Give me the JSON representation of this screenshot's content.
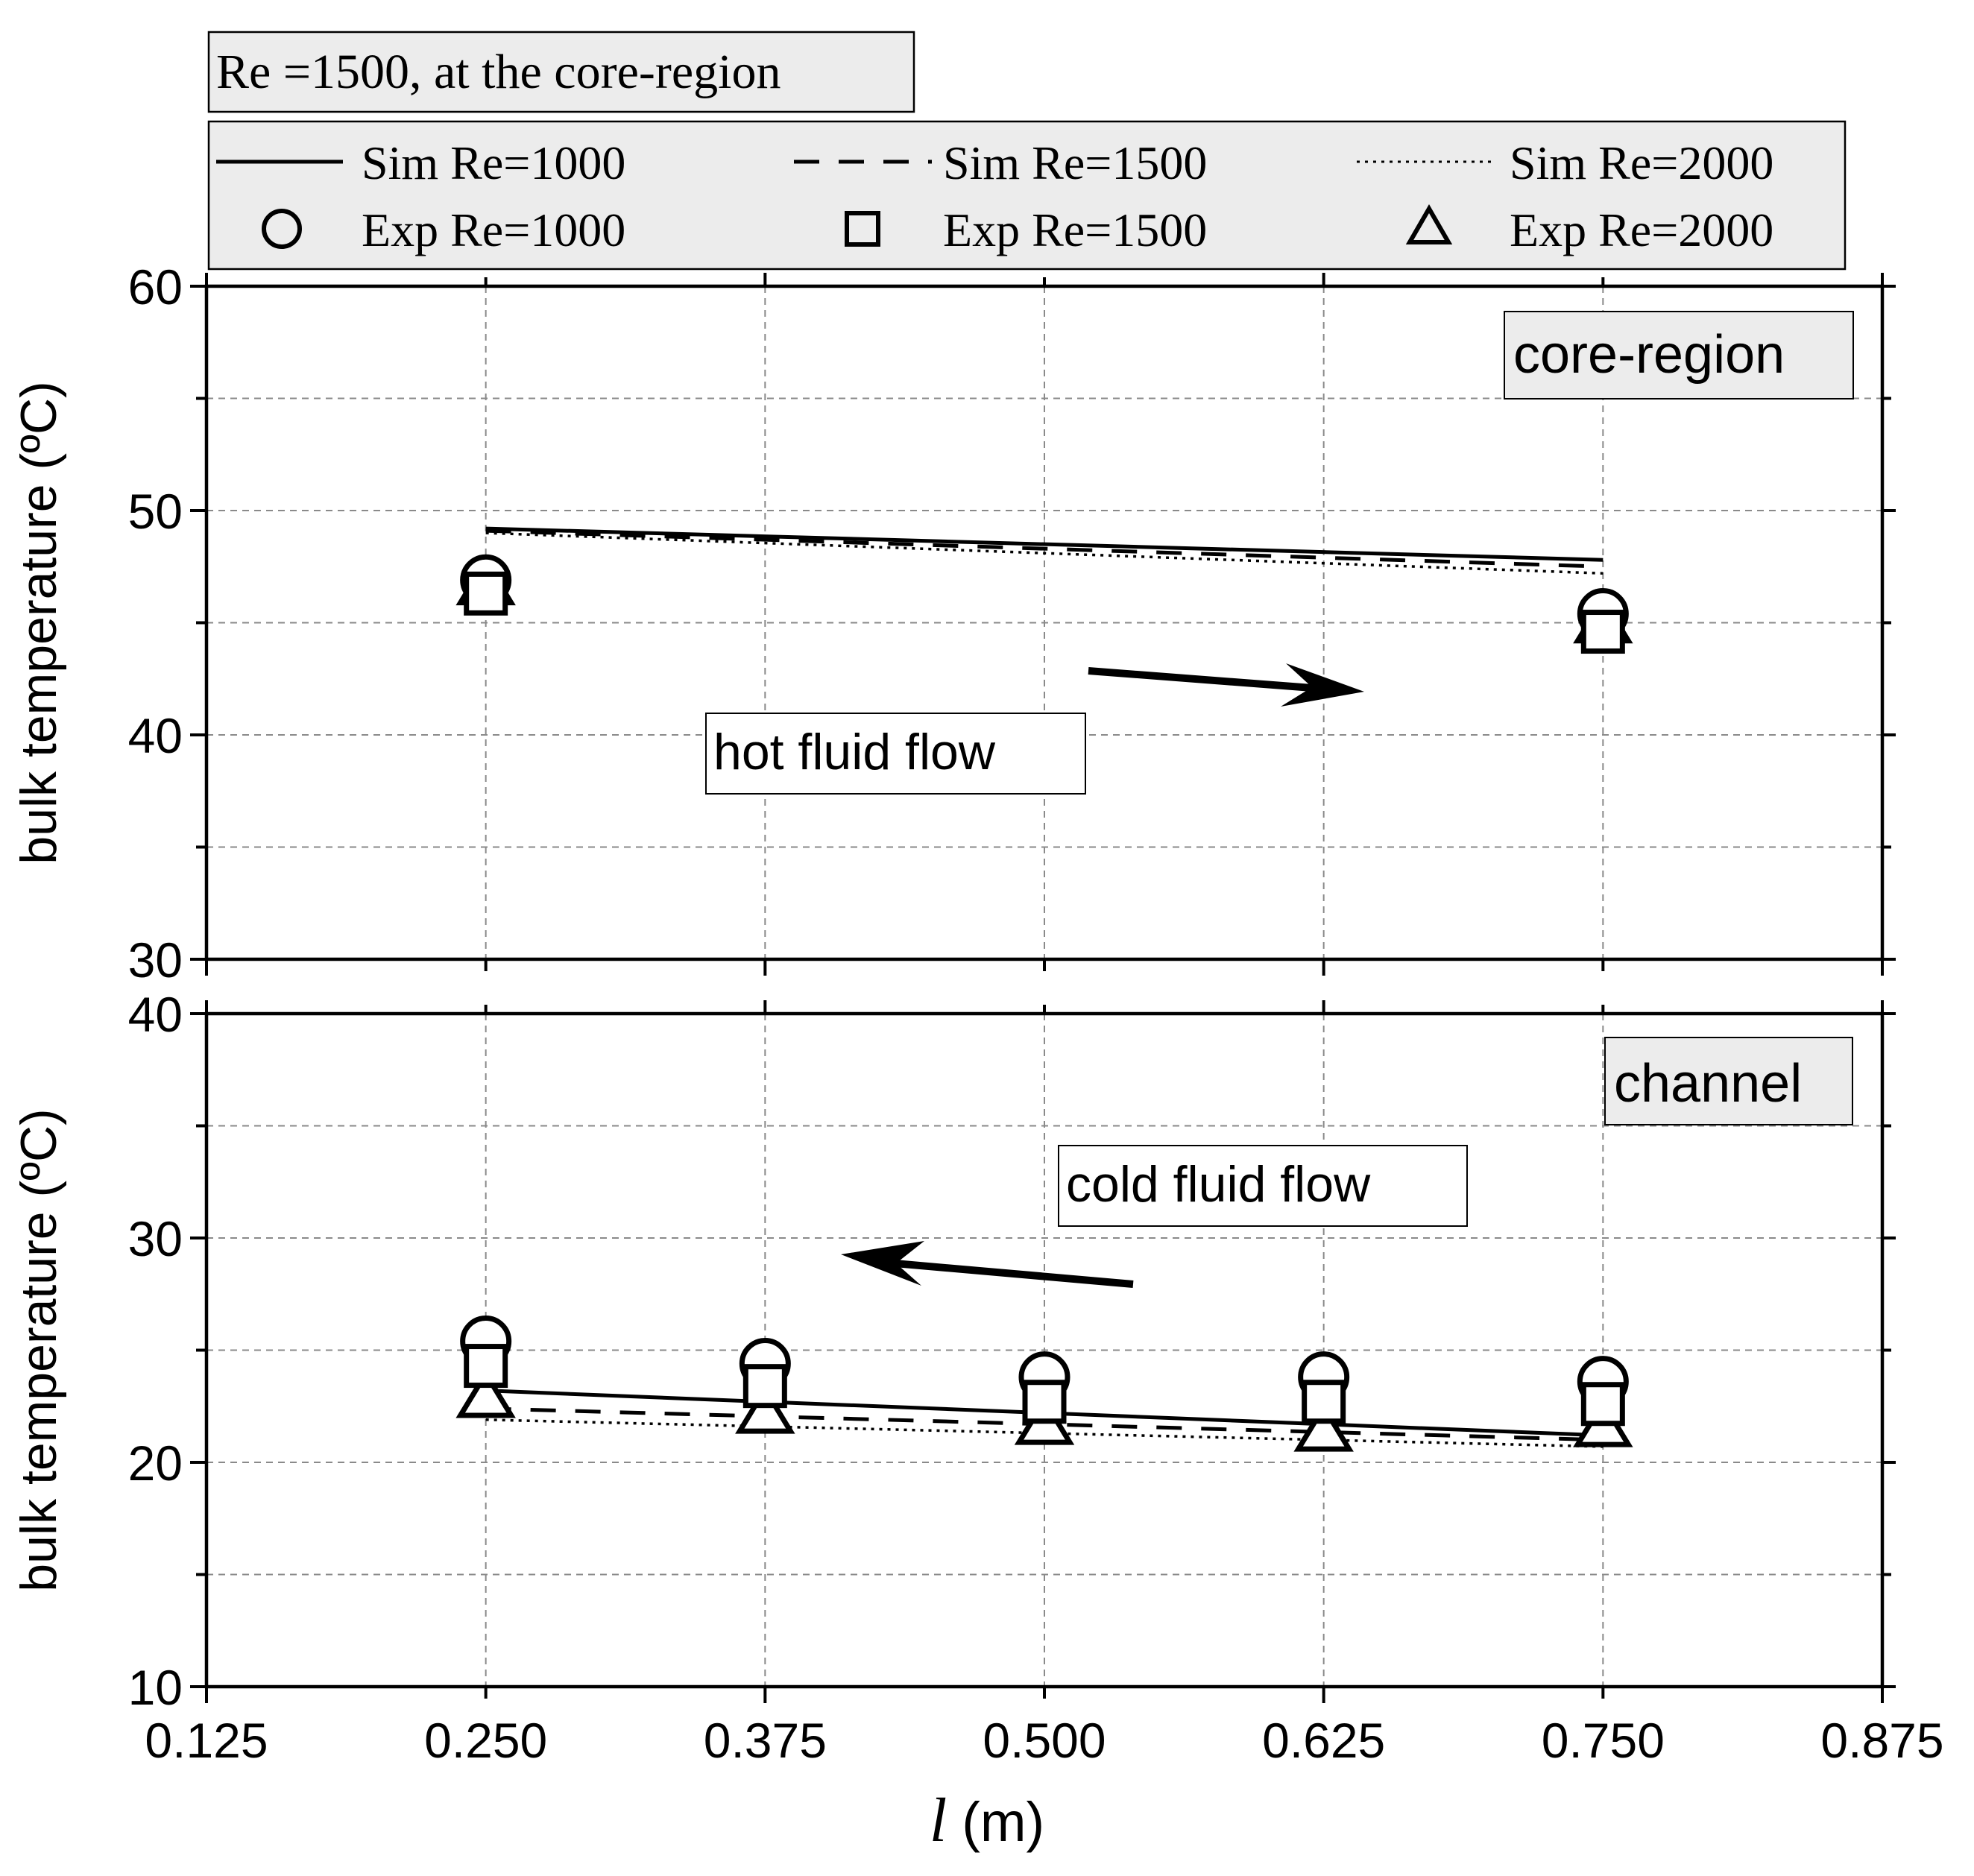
{
  "chart_title_box": "Re =1500, at the core-region",
  "legend": {
    "entries": [
      {
        "label": "Sim Re=1000",
        "kind": "line",
        "style": "solid"
      },
      {
        "label": "Sim Re=1500",
        "kind": "line",
        "style": "dashed"
      },
      {
        "label": "Sim Re=2000",
        "kind": "line",
        "style": "dotted"
      },
      {
        "label": "Exp Re=1000",
        "kind": "marker",
        "marker": "circle"
      },
      {
        "label": "Exp Re=1500",
        "kind": "marker",
        "marker": "square"
      },
      {
        "label": "Exp Re=2000",
        "kind": "marker",
        "marker": "triangle"
      }
    ]
  },
  "x_axis": {
    "label_italic": "l",
    "label_unit": "(m)",
    "ticks": [
      "0.125",
      "0.250",
      "0.375",
      "0.500",
      "0.625",
      "0.750",
      "0.875"
    ]
  },
  "chart_data": [
    {
      "type": "line",
      "panel": "core-region",
      "panel_label": "core-region",
      "ylabel": "bulk temperature (ºC)",
      "xlim": [
        0.125,
        0.875
      ],
      "ylim": [
        30,
        60
      ],
      "yticks": [
        "30",
        "40",
        "50",
        "60"
      ],
      "grid": true,
      "annotation": {
        "text": "hot fluid flow",
        "arrow": "right"
      },
      "sim_series": [
        {
          "name": "Sim Re=1000",
          "style": "solid",
          "x": [
            0.25,
            0.75
          ],
          "y": [
            49.2,
            47.8
          ]
        },
        {
          "name": "Sim Re=1500",
          "style": "dashed",
          "x": [
            0.25,
            0.75
          ],
          "y": [
            49.1,
            47.5
          ]
        },
        {
          "name": "Sim Re=2000",
          "style": "dotted",
          "x": [
            0.25,
            0.75
          ],
          "y": [
            49.0,
            47.2
          ]
        }
      ],
      "exp_series": [
        {
          "name": "Exp Re=1000",
          "marker": "circle",
          "x": [
            0.25,
            0.75
          ],
          "y": [
            46.9,
            45.4
          ]
        },
        {
          "name": "Exp Re=1500",
          "marker": "square",
          "x": [
            0.25,
            0.75
          ],
          "y": [
            46.3,
            44.6
          ]
        },
        {
          "name": "Exp Re=2000",
          "marker": "triangle",
          "x": [
            0.25,
            0.75
          ],
          "y": [
            46.6,
            44.9
          ]
        }
      ]
    },
    {
      "type": "line",
      "panel": "channel",
      "panel_label": "channel",
      "ylabel": "bulk temperature (ºC)",
      "xlim": [
        0.125,
        0.875
      ],
      "ylim": [
        10,
        40
      ],
      "yticks": [
        "10",
        "20",
        "30",
        "40"
      ],
      "grid": true,
      "annotation": {
        "text": "cold fluid flow",
        "arrow": "left"
      },
      "sim_series": [
        {
          "name": "Sim Re=1000",
          "style": "solid",
          "x": [
            0.25,
            0.75
          ],
          "y": [
            23.2,
            21.2
          ]
        },
        {
          "name": "Sim Re=1500",
          "style": "dashed",
          "x": [
            0.25,
            0.75
          ],
          "y": [
            22.4,
            21.0
          ]
        },
        {
          "name": "Sim Re=2000",
          "style": "dotted",
          "x": [
            0.25,
            0.75
          ],
          "y": [
            21.9,
            20.7
          ]
        }
      ],
      "exp_series": [
        {
          "name": "Exp Re=1000",
          "marker": "circle",
          "x": [
            0.25,
            0.375,
            0.5,
            0.625,
            0.75
          ],
          "y": [
            25.4,
            24.4,
            23.8,
            23.8,
            23.6
          ]
        },
        {
          "name": "Exp Re=1500",
          "marker": "square",
          "x": [
            0.25,
            0.375,
            0.5,
            0.625,
            0.75
          ],
          "y": [
            24.3,
            23.4,
            22.7,
            22.7,
            22.6
          ]
        },
        {
          "name": "Exp Re=2000",
          "marker": "triangle",
          "x": [
            0.25,
            0.375,
            0.5,
            0.625,
            0.75
          ],
          "y": [
            22.8,
            22.1,
            21.6,
            21.3,
            21.5
          ]
        }
      ]
    }
  ]
}
